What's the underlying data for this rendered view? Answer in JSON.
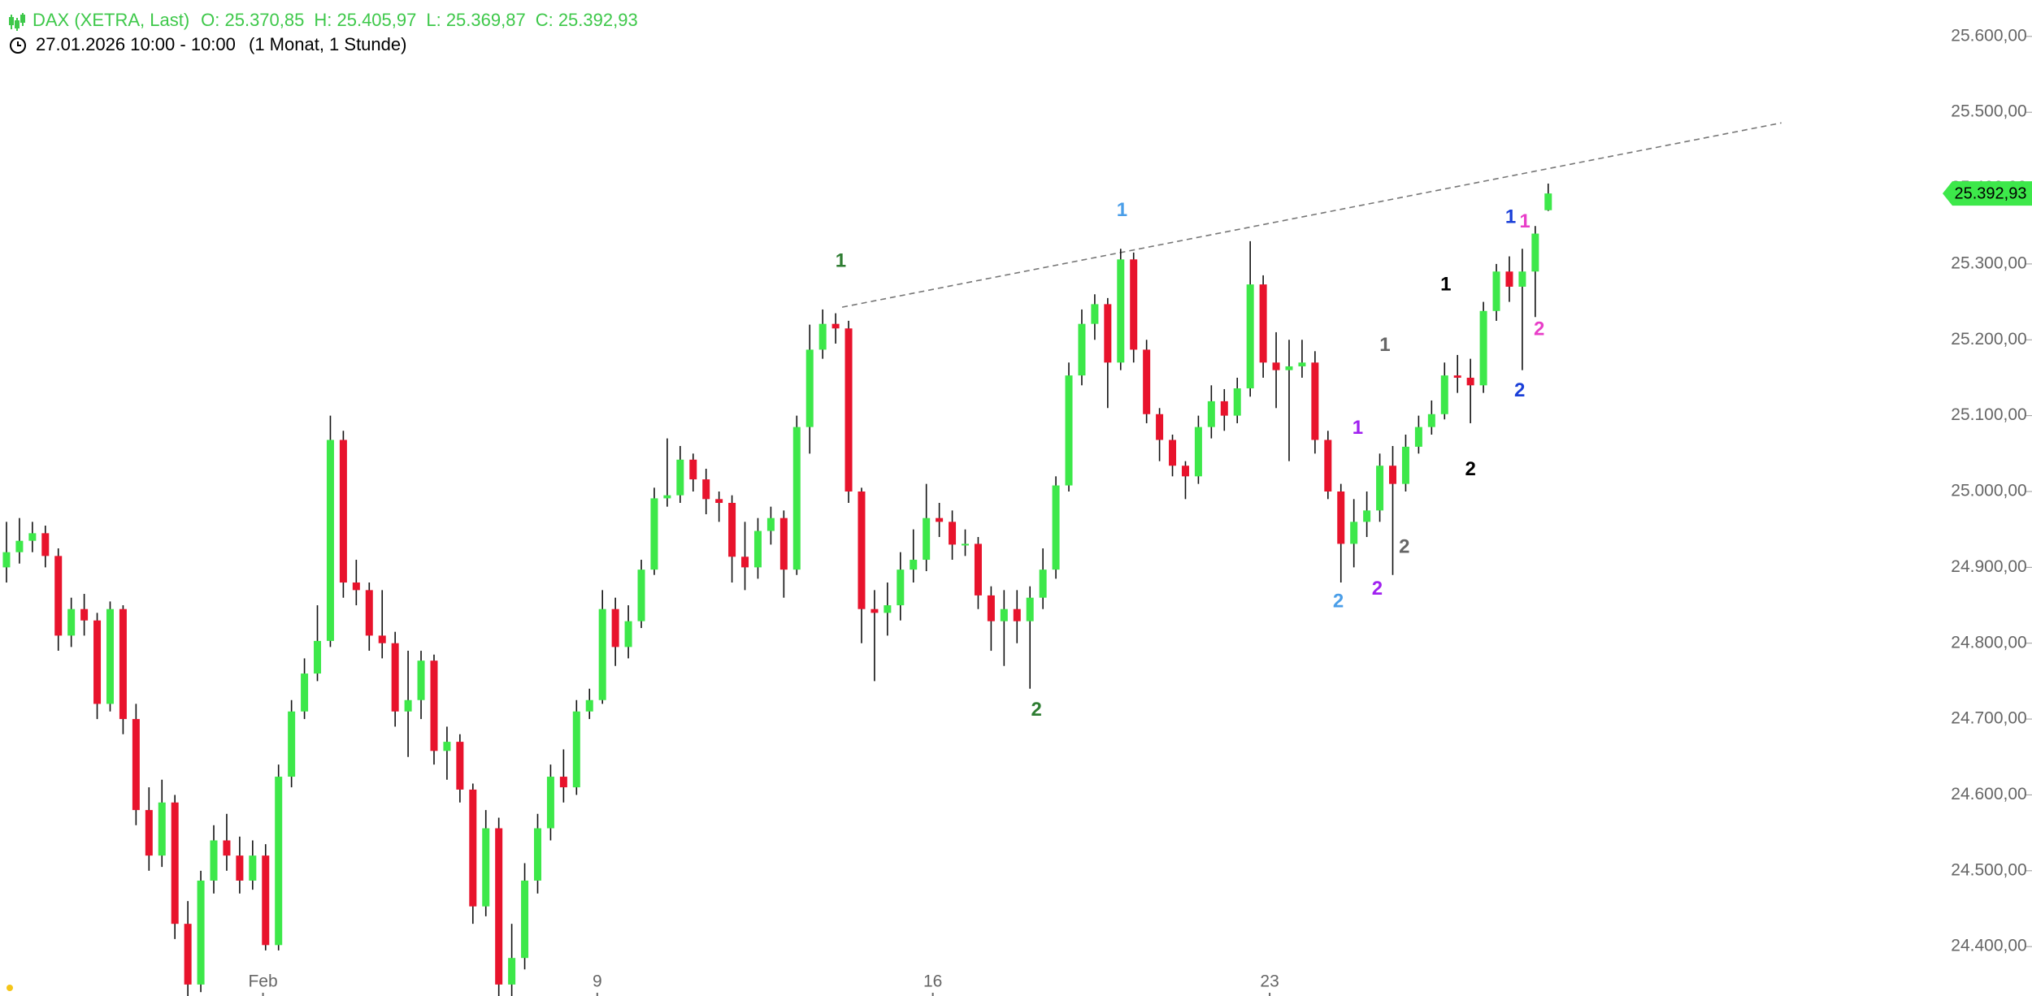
{
  "chart_data": {
    "type": "candlestick",
    "title": "DAX (XETRA, Last)",
    "quote": [
      "O: 25.370,85",
      "H: 25.405,97",
      "L: 25.369,87",
      "C: 25.392,93"
    ],
    "subtitle": "27.01.2026 10:00 - 10:00",
    "interval": "(1 Monat, 1 Stunde)",
    "last_price_label": "25.392,93",
    "up_color": "#3de84a",
    "down_color": "#e8132c",
    "ylim": [
      24337,
      25648
    ],
    "xlim": [
      -0.5,
      148.5
    ],
    "yticks": [
      {
        "value": 24400,
        "label": "24.400,00"
      },
      {
        "value": 24500,
        "label": "24.500,00"
      },
      {
        "value": 24600,
        "label": "24.600,00"
      },
      {
        "value": 24700,
        "label": "24.700,00"
      },
      {
        "value": 24800,
        "label": "24.800,00"
      },
      {
        "value": 24900,
        "label": "24.900,00"
      },
      {
        "value": 25000,
        "label": "25.000,00"
      },
      {
        "value": 25100,
        "label": "25.100,00"
      },
      {
        "value": 25200,
        "label": "25.200,00"
      },
      {
        "value": 25300,
        "label": "25.300,00"
      },
      {
        "value": 25400,
        "label": "25.400,00"
      },
      {
        "value": 25500,
        "label": "25.500,00"
      },
      {
        "value": 25600,
        "label": "25.600,00"
      }
    ],
    "xticks": [
      {
        "value": 19.8,
        "label": "Feb"
      },
      {
        "value": 45.6,
        "label": "9"
      },
      {
        "value": 71.5,
        "label": "16"
      },
      {
        "value": 97.5,
        "label": "23"
      }
    ],
    "open": [
      24900,
      24920,
      24935,
      24945,
      24915,
      24810,
      24845,
      24830,
      24720,
      24845,
      24700,
      24580,
      24520,
      24590,
      24430,
      24350,
      24487,
      24540,
      24520,
      24487,
      24520,
      24402,
      24624,
      24710,
      24760,
      24803,
      25068,
      24880,
      24870,
      24810,
      24800,
      24710,
      24725,
      24777,
      24658,
      24670,
      24607,
      24453,
      24556,
      24350,
      24385,
      24487,
      24556,
      24624,
      24610,
      24710,
      24725,
      24845,
      24795,
      24829,
      24897,
      24991,
      24995,
      25042,
      25016,
      24990,
      24985,
      24914,
      24900,
      24948,
      24965,
      24897,
      25085,
      25187,
      25221,
      25215,
      25000,
      24845,
      24840,
      24850,
      24897,
      24910,
      24965,
      24960,
      24930,
      24931,
      24863,
      24829,
      24845,
      24829,
      24860,
      24897,
      25008,
      25153,
      25221,
      25247,
      25170,
      25306,
      25187,
      25102,
      25068,
      25034,
      25020,
      25085,
      25119,
      25100,
      25136,
      25273,
      25170,
      25160,
      25165,
      25170,
      25068,
      25000,
      24931,
      24960,
      24975,
      25034,
      25010,
      25059,
      25085,
      25102,
      25153,
      25150,
      25140,
      25238,
      25290,
      25270,
      25290,
      25370.85
    ],
    "high": [
      24960,
      24965,
      24960,
      24955,
      24925,
      24860,
      24865,
      24840,
      24855,
      24850,
      24720,
      24610,
      24620,
      24600,
      24460,
      24500,
      24560,
      24575,
      24545,
      24540,
      24535,
      24640,
      24725,
      24780,
      24850,
      25100,
      25080,
      24910,
      24880,
      24870,
      24815,
      24790,
      24790,
      24785,
      24690,
      24680,
      24615,
      24580,
      24570,
      24430,
      24510,
      24575,
      24640,
      24660,
      24725,
      24740,
      24870,
      24860,
      24850,
      24910,
      25005,
      25070,
      25060,
      25050,
      25030,
      25000,
      24995,
      24960,
      24965,
      24980,
      24975,
      25100,
      25220,
      25240,
      25235,
      25225,
      25005,
      24870,
      24880,
      24920,
      24950,
      25010,
      24985,
      24975,
      24950,
      24940,
      24875,
      24870,
      24870,
      24875,
      24925,
      25020,
      25170,
      25240,
      25260,
      25255,
      25320,
      25315,
      25200,
      25110,
      25075,
      25040,
      25100,
      25140,
      25135,
      25150,
      25330,
      25285,
      25210,
      25200,
      25200,
      25185,
      25080,
      25010,
      24990,
      25000,
      25050,
      25060,
      25075,
      25100,
      25120,
      25170,
      25180,
      25175,
      25250,
      25300,
      25310,
      25320,
      25350,
      25405.97
    ],
    "low": [
      24880,
      24905,
      24920,
      24900,
      24790,
      24795,
      24810,
      24700,
      24710,
      24680,
      24560,
      24500,
      24505,
      24410,
      24330,
      24340,
      24470,
      24500,
      24470,
      24475,
      24395,
      24395,
      24610,
      24700,
      24750,
      24795,
      24860,
      24850,
      24790,
      24780,
      24690,
      24650,
      24700,
      24640,
      24620,
      24590,
      24430,
      24440,
      24330,
      24330,
      24370,
      24470,
      24540,
      24590,
      24600,
      24700,
      24720,
      24770,
      24780,
      24820,
      24890,
      24980,
      24985,
      25000,
      24970,
      24960,
      24880,
      24870,
      24885,
      24930,
      24860,
      24890,
      25050,
      25175,
      25195,
      24985,
      24800,
      24750,
      24810,
      24830,
      24880,
      24895,
      24940,
      24910,
      24915,
      24845,
      24790,
      24770,
      24800,
      24740,
      24845,
      24885,
      25000,
      25140,
      25200,
      25110,
      25160,
      25170,
      25090,
      25040,
      25020,
      24990,
      25010,
      25070,
      25080,
      25090,
      25125,
      25150,
      25110,
      25040,
      25150,
      25050,
      24990,
      24880,
      24900,
      24940,
      24960,
      24890,
      25000,
      25050,
      25075,
      25095,
      25130,
      25090,
      25130,
      25225,
      25250,
      25160,
      25230,
      25369.87
    ],
    "close": [
      24920,
      24935,
      24945,
      24915,
      24810,
      24845,
      24830,
      24720,
      24845,
      24700,
      24580,
      24520,
      24590,
      24430,
      24350,
      24487,
      24540,
      24520,
      24487,
      24520,
      24402,
      24624,
      24710,
      24760,
      24803,
      25068,
      24880,
      24870,
      24810,
      24800,
      24710,
      24725,
      24777,
      24658,
      24670,
      24607,
      24453,
      24556,
      24350,
      24385,
      24487,
      24556,
      24624,
      24610,
      24710,
      24725,
      24845,
      24795,
      24829,
      24897,
      24991,
      24995,
      25042,
      25016,
      24990,
      24985,
      24914,
      24900,
      24948,
      24965,
      24897,
      25085,
      25187,
      25221,
      25215,
      25000,
      24845,
      24840,
      24850,
      24897,
      24910,
      24965,
      24960,
      24930,
      24931,
      24863,
      24829,
      24845,
      24829,
      24860,
      24897,
      25008,
      25153,
      25221,
      25247,
      25170,
      25306,
      25187,
      25102,
      25068,
      25034,
      25020,
      25085,
      25119,
      25100,
      25136,
      25273,
      25170,
      25160,
      25165,
      25170,
      25068,
      25000,
      24931,
      24960,
      24975,
      25034,
      25010,
      25059,
      25085,
      25102,
      25153,
      25150,
      25140,
      25238,
      25290,
      25270,
      25290,
      25340,
      25392.93
    ],
    "trendline": {
      "x": [
        64.5,
        137
      ],
      "y": [
        25243,
        25486
      ],
      "color": "#777777"
    },
    "annotations": [
      {
        "text": "1",
        "x": 64.4,
        "y": 25303,
        "color": "#2e7d32"
      },
      {
        "text": "2",
        "x": 79.5,
        "y": 24711,
        "color": "#2e7d32"
      },
      {
        "text": "1",
        "x": 86.1,
        "y": 25370,
        "color": "#4a9ee8"
      },
      {
        "text": "2",
        "x": 102.8,
        "y": 24854,
        "color": "#4a9ee8"
      },
      {
        "text": "1",
        "x": 104.3,
        "y": 25083,
        "color": "#a020f0"
      },
      {
        "text": "2",
        "x": 105.8,
        "y": 24871,
        "color": "#a020f0"
      },
      {
        "text": "1",
        "x": 106.4,
        "y": 25192,
        "color": "#666666"
      },
      {
        "text": "2",
        "x": 107.9,
        "y": 24926,
        "color": "#666666"
      },
      {
        "text": "1",
        "x": 111.1,
        "y": 25272,
        "color": "#000000"
      },
      {
        "text": "2",
        "x": 113,
        "y": 25028,
        "color": "#000000"
      },
      {
        "text": "1",
        "x": 116.1,
        "y": 25361,
        "color": "#1a3fd8"
      },
      {
        "text": "2",
        "x": 116.8,
        "y": 25132,
        "color": "#1a3fd8"
      },
      {
        "text": "1",
        "x": 117.2,
        "y": 25355,
        "color": "#e83ec8"
      },
      {
        "text": "2",
        "x": 118.3,
        "y": 25213,
        "color": "#e83ec8"
      }
    ]
  }
}
